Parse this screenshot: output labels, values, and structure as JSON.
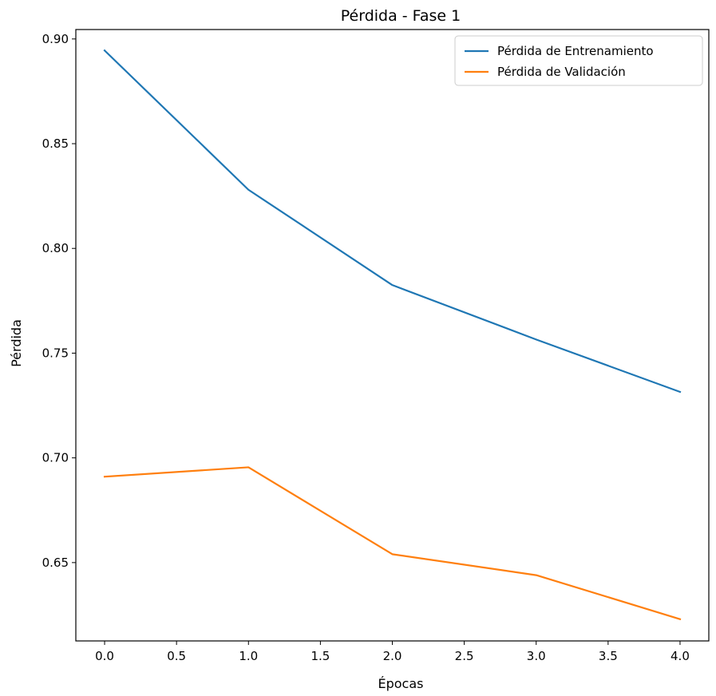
{
  "chart_data": {
    "type": "line",
    "title": "Pérdida - Fase 1",
    "xlabel": "Épocas",
    "ylabel": "Pérdida",
    "x": [
      0,
      1,
      2,
      3,
      4
    ],
    "xlim": [
      -0.2,
      4.2
    ],
    "ylim": [
      0.6126,
      0.9045
    ],
    "xticks": [
      0.0,
      0.5,
      1.0,
      1.5,
      2.0,
      2.5,
      3.0,
      3.5,
      4.0
    ],
    "xtick_labels": [
      "0.0",
      "0.5",
      "1.0",
      "1.5",
      "2.0",
      "2.5",
      "3.0",
      "3.5",
      "4.0"
    ],
    "yticks": [
      0.65,
      0.7,
      0.75,
      0.8,
      0.85,
      0.9
    ],
    "ytick_labels": [
      "0.65",
      "0.70",
      "0.75",
      "0.80",
      "0.85",
      "0.90"
    ],
    "grid": false,
    "legend_position": "top-right",
    "series": [
      {
        "name": "Pérdida de Entrenamiento",
        "color": "#1f77b4",
        "values": [
          0.8945,
          0.828,
          0.7825,
          0.7565,
          0.7315
        ]
      },
      {
        "name": "Pérdida de Validación",
        "color": "#ff7f0e",
        "values": [
          0.691,
          0.6955,
          0.654,
          0.644,
          0.623
        ]
      }
    ]
  }
}
